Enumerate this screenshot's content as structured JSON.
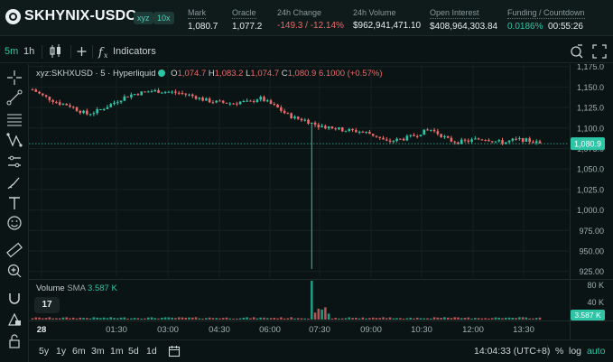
{
  "header": {
    "symbol": "SKHYNIX-USDC",
    "tag_dex": "xyz",
    "tag_leverage": "10x",
    "stats": [
      {
        "key": "mark",
        "label": "Mark",
        "value": "1,080.7"
      },
      {
        "key": "oracle",
        "label": "Oracle",
        "value": "1,077.2"
      },
      {
        "key": "change",
        "label": "24h Change",
        "value": "-149.3 / -12.14%"
      },
      {
        "key": "volume",
        "label": "24h Volume",
        "value": "$962,941,471.10"
      },
      {
        "key": "oi",
        "label": "Open Interest",
        "value": "$408,964,303.84"
      },
      {
        "key": "funding",
        "label": "Funding / Countdown",
        "value_rate": "0.0186%",
        "value_countdown": "00:55:26"
      }
    ]
  },
  "toolbar": {
    "timeframes": [
      "5m",
      "1h"
    ],
    "active_timeframe": "5m",
    "indicators_label": "Indicators",
    "colors": {
      "accent": "#2ec5a6"
    }
  },
  "legend": {
    "symbol": "xyz:SKHXUSD · 5 · Hyperliquid",
    "o_label": "O",
    "o": "1,074.7",
    "h_label": "H",
    "h": "1,083.2",
    "l_label": "L",
    "l": "1,074.7",
    "c_label": "C",
    "c": "1,080.9",
    "change": "6.1000 (+0.57%)"
  },
  "volume_legend": {
    "label": "Volume",
    "sma_label": "SMA",
    "sma_value": "3.587 K"
  },
  "tv_logo": "17",
  "price_axis": {
    "ticks": [
      "1,175.0",
      "1,150.0",
      "1,125.0",
      "1,100.0",
      "1,075.0",
      "1,050.0",
      "1,025.0",
      "1,000.0",
      "975.00",
      "950.00",
      "925.00"
    ],
    "current_price": "1,080.9",
    "volume_ticks": [
      "80 K",
      "40 K"
    ],
    "volume_current": "3.587 K"
  },
  "time_axis": {
    "ticks": [
      "28",
      "01:30",
      "03:00",
      "04:30",
      "06:00",
      "07:30",
      "09:00",
      "10:30",
      "12:00",
      "13:30"
    ]
  },
  "bottom": {
    "ranges": [
      "5y",
      "1y",
      "6m",
      "3m",
      "1m",
      "5d",
      "1d"
    ],
    "clock": "14:04:33 (UTC+8)",
    "percent": "%",
    "log": "log",
    "auto": "auto"
  },
  "chart_data": {
    "type": "candlestick",
    "x_range": [
      "00:00",
      "14:05"
    ],
    "ylim": [
      918,
      1178
    ],
    "x_ticks": [
      "28",
      "01:30",
      "03:00",
      "04:30",
      "06:00",
      "07:30",
      "09:00",
      "10:30",
      "12:00",
      "13:30"
    ],
    "y_ticks": [
      925,
      950,
      975,
      1000,
      1025,
      1050,
      1075,
      1100,
      1125,
      1150,
      1175
    ],
    "close_path": [
      1147,
      1140,
      1135,
      1130,
      1128,
      1122,
      1117,
      1120,
      1125,
      1131,
      1137,
      1141,
      1143,
      1145,
      1145,
      1144,
      1143,
      1141,
      1138,
      1134,
      1132,
      1131,
      1130,
      1132,
      1131,
      1137,
      1131,
      1125,
      1117,
      1112,
      1110,
      1105,
      1102,
      1101,
      1098,
      1097,
      1096,
      1094,
      1090,
      1083,
      1085,
      1087,
      1090,
      1095,
      1098,
      1092,
      1085,
      1083,
      1084,
      1086,
      1087,
      1084,
      1082,
      1085,
      1086,
      1084,
      1081
    ],
    "spike": {
      "time": "07:05",
      "low": 928
    },
    "volume_max_k": 80,
    "last_close": 1080.9,
    "colors": {
      "up": "#2ec5a6",
      "down": "#ed6a6a"
    }
  }
}
